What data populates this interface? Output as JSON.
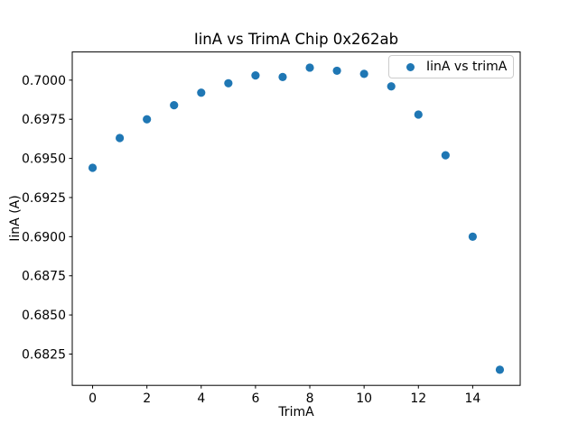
{
  "chart_data": {
    "type": "scatter",
    "title": "IinA vs TrimA Chip 0x262ab",
    "xlabel": "TrimA",
    "ylabel": "IinA (A)",
    "series": [
      {
        "name": "IinA vs trimA",
        "color": "#1f77b4",
        "x": [
          0,
          1,
          2,
          3,
          4,
          5,
          6,
          7,
          8,
          9,
          10,
          11,
          12,
          13,
          14,
          15
        ],
        "y": [
          0.6944,
          0.6963,
          0.6975,
          0.6984,
          0.6992,
          0.6998,
          0.7003,
          0.7002,
          0.7008,
          0.7006,
          0.7004,
          0.6996,
          0.6978,
          0.6952,
          0.69,
          0.6815
        ]
      }
    ],
    "legend_position": "upper right",
    "grid": false,
    "xlim": [
      -0.75,
      15.75
    ],
    "ylim": [
      0.6805,
      0.7018
    ],
    "xticks": [
      0,
      2,
      4,
      6,
      8,
      10,
      12,
      14
    ],
    "ytick_labels": [
      "0.6825",
      "0.6850",
      "0.6875",
      "0.6900",
      "0.6925",
      "0.6950",
      "0.6975",
      "0.7000"
    ],
    "axis_color": "#000000",
    "background_color": "#ffffff"
  }
}
